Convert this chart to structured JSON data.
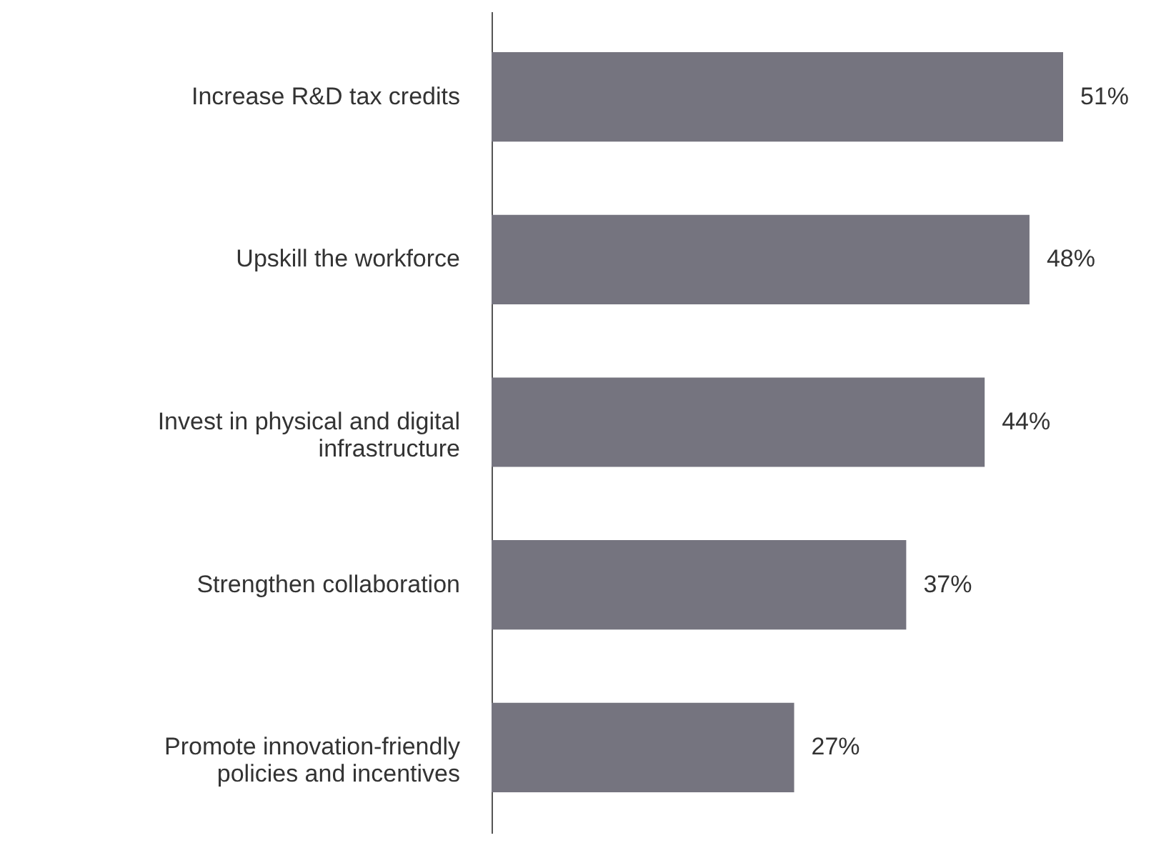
{
  "chart_data": {
    "type": "bar",
    "orientation": "horizontal",
    "categories": [
      "Increase R&D tax credits",
      "Upskill the workforce",
      "Invest in physical and digital infrastructure",
      "Strengthen collaboration",
      "Promote innovation-friendly policies and incentives"
    ],
    "values": [
      51,
      48,
      44,
      37,
      27
    ],
    "value_labels": [
      "51%",
      "48%",
      "44%",
      "37%",
      "27%"
    ],
    "color": "#75747f"
  }
}
